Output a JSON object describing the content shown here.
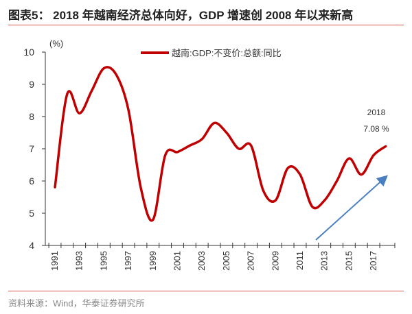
{
  "title": "图表5：  2018 年越南经济总体向好，GDP 增速创 2008 年以来新高",
  "source": "资料来源：Wind，华泰证券研究所",
  "chart_data": {
    "type": "line",
    "title": "",
    "ylabel": "(%)",
    "xlabel": "",
    "ylim": [
      4,
      10
    ],
    "yticks": [
      4,
      5,
      6,
      7,
      8,
      9,
      10
    ],
    "xticks": [
      "1991",
      "1993",
      "1995",
      "1997",
      "1999",
      "2001",
      "2003",
      "2005",
      "2007",
      "2009",
      "2011",
      "2013",
      "2015",
      "2017"
    ],
    "x": [
      1991,
      1992,
      1993,
      1994,
      1995,
      1996,
      1997,
      1998,
      1999,
      2000,
      2001,
      2002,
      2003,
      2004,
      2005,
      2006,
      2007,
      2008,
      2009,
      2010,
      2011,
      2012,
      2013,
      2014,
      2015,
      2016,
      2017,
      2018
    ],
    "series": [
      {
        "name": "越南:GDP:不变价:总额:同比",
        "color": "#c00000",
        "values": [
          5.8,
          8.7,
          8.1,
          8.8,
          9.5,
          9.3,
          8.2,
          5.8,
          4.8,
          6.8,
          6.9,
          7.1,
          7.3,
          7.8,
          7.5,
          7.0,
          7.1,
          5.7,
          5.4,
          6.4,
          6.2,
          5.2,
          5.4,
          6.0,
          6.7,
          6.2,
          6.8,
          7.08
        ]
      }
    ],
    "legend": "top-center",
    "grid": false,
    "annotations": [
      {
        "year": "2018",
        "value": "7.08 %"
      }
    ],
    "trend_arrow_color": "#4a7fc1"
  }
}
